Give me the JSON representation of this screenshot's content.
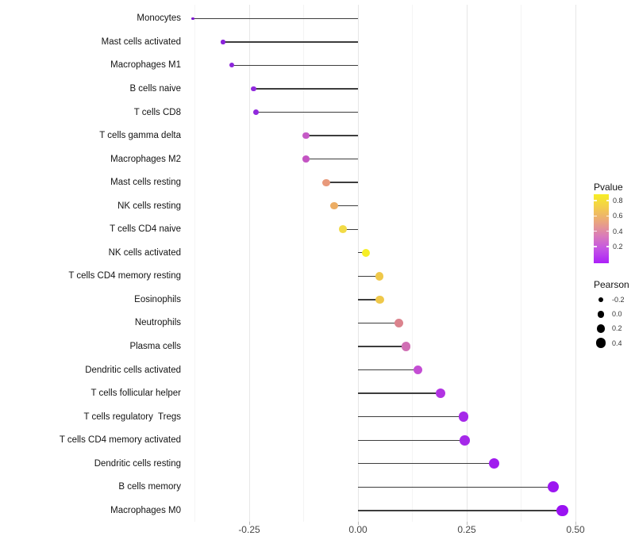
{
  "chart_data": {
    "type": "scatter",
    "subtype": "lollipop",
    "title": "",
    "xlabel": "",
    "ylabel": "",
    "grid": "on",
    "x_ticks": [
      "-0.25",
      "0.00",
      "0.25",
      "0.50"
    ],
    "x_tick_values": [
      -0.25,
      0.0,
      0.25,
      0.5
    ],
    "x_minor_tick_values": [
      -0.375,
      -0.125,
      0.125,
      0.375
    ],
    "xlim": [
      -0.418,
      0.513
    ],
    "categories": [
      "Monocytes",
      "Mast cells activated",
      "Macrophages M1",
      "B cells naive",
      "T cells CD8",
      "T cells gamma delta",
      "Macrophages M2",
      "Mast cells resting",
      "NK cells resting",
      "T cells CD4 naive",
      "NK cells activated",
      "T cells CD4 memory resting",
      "Eosinophils",
      "Neutrophils",
      "Plasma cells",
      "Dendritic cells activated",
      "T cells follicular helper",
      "T cells regulatory  Tregs",
      "T cells CD4 memory activated",
      "Dendritic cells resting",
      "B cells memory",
      "Macrophages M0"
    ],
    "points": [
      {
        "label": "Monocytes",
        "pearson": -0.38,
        "color": "#7B16CE"
      },
      {
        "label": "Mast cells activated",
        "pearson": -0.31,
        "color": "#8A22DA"
      },
      {
        "label": "Macrophages M1",
        "pearson": -0.29,
        "color": "#8D26DB"
      },
      {
        "label": "B cells naive",
        "pearson": -0.24,
        "color": "#9029DD"
      },
      {
        "label": "T cells CD8",
        "pearson": -0.235,
        "color": "#912ADD"
      },
      {
        "label": "T cells gamma delta",
        "pearson": -0.12,
        "color": "#C55AC6"
      },
      {
        "label": "Macrophages M2",
        "pearson": -0.12,
        "color": "#C454C3"
      },
      {
        "label": "Mast cells resting",
        "pearson": -0.073,
        "color": "#E8997B"
      },
      {
        "label": "NK cells resting",
        "pearson": -0.055,
        "color": "#ECAD64"
      },
      {
        "label": "T cells CD4 naive",
        "pearson": -0.035,
        "color": "#F2DB47"
      },
      {
        "label": "NK cells activated",
        "pearson": 0.018,
        "color": "#F6EE26"
      },
      {
        "label": "T cells CD4 memory resting",
        "pearson": 0.049,
        "color": "#EFC84A"
      },
      {
        "label": "Eosinophils",
        "pearson": 0.05,
        "color": "#EFC84A"
      },
      {
        "label": "Neutrophils",
        "pearson": 0.094,
        "color": "#DB838D"
      },
      {
        "label": "Plasma cells",
        "pearson": 0.11,
        "color": "#D06FB4"
      },
      {
        "label": "Dendritic cells activated",
        "pearson": 0.138,
        "color": "#C44ED4"
      },
      {
        "label": "T cells follicular helper",
        "pearson": 0.19,
        "color": "#B133E2"
      },
      {
        "label": "T cells regulatory  Tregs",
        "pearson": 0.243,
        "color": "#A528E9"
      },
      {
        "label": "T cells CD4 memory activated",
        "pearson": 0.245,
        "color": "#A528E9"
      },
      {
        "label": "Dendritic cells resting",
        "pearson": 0.313,
        "color": "#A01BEE"
      },
      {
        "label": "B cells memory",
        "pearson": 0.449,
        "color": "#9C17F1"
      },
      {
        "label": "Macrophages M0",
        "pearson": 0.47,
        "color": "#9A12F2"
      }
    ],
    "legend_pvalue": {
      "title": "Pvalue",
      "ticks": [
        "0.8",
        "0.6",
        "0.4",
        "0.2"
      ],
      "gradient": [
        "#F6EE26",
        "#F3CB4E",
        "#EAA57E",
        "#DA7CB9",
        "#C353E5",
        "#AC20F8"
      ]
    },
    "legend_pearson": {
      "title": "Pearson",
      "ticks": [
        "-0.2",
        "0.0",
        "0.2",
        "0.4"
      ],
      "tick_values": [
        -0.2,
        0.0,
        0.2,
        0.4
      ]
    }
  }
}
